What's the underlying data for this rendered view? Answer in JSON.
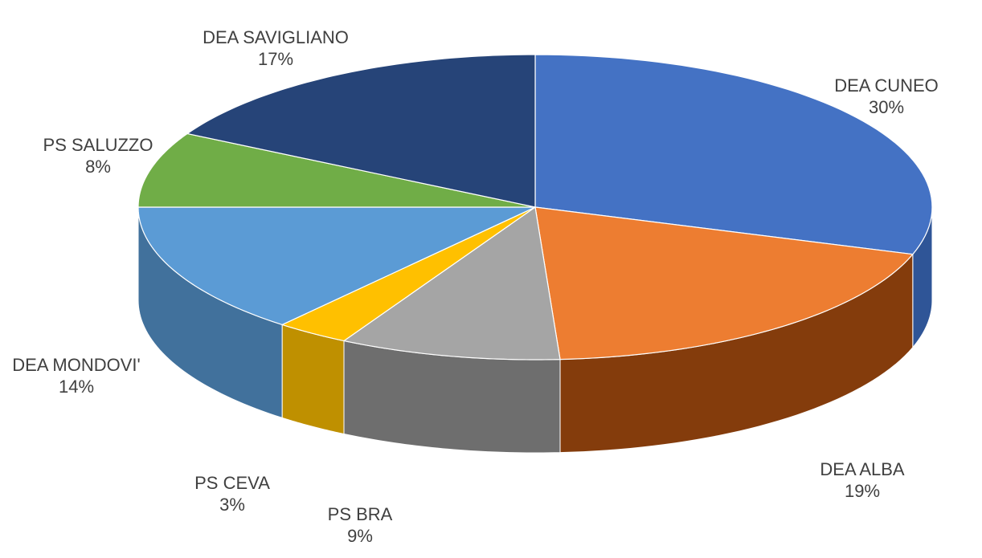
{
  "chart_data": {
    "type": "pie",
    "title": "",
    "style": "3d-perspective",
    "start_angle_deg": 90,
    "direction": "clockwise",
    "slices": [
      {
        "label": "DEA CUNEO",
        "percent_label": "30%",
        "value": 30,
        "color": "#4472C4",
        "side_color": "#2F5597"
      },
      {
        "label": "DEA ALBA",
        "percent_label": "19%",
        "value": 19,
        "color": "#ED7D31",
        "side_color": "#843C0C"
      },
      {
        "label": "PS BRA",
        "percent_label": "9%",
        "value": 9,
        "color": "#A5A5A5",
        "side_color": "#6E6E6E"
      },
      {
        "label": "PS CEVA",
        "percent_label": "3%",
        "value": 3,
        "color": "#FFC000",
        "side_color": "#BF9000"
      },
      {
        "label": "DEA MONDOVI'",
        "percent_label": "14%",
        "value": 14,
        "color": "#5B9BD5",
        "side_color": "#41719C"
      },
      {
        "label": "PS SALUZZO",
        "percent_label": "8%",
        "value": 8,
        "color": "#70AD47",
        "side_color": "#507E32"
      },
      {
        "label": "DEA SAVIGLIANO",
        "percent_label": "17%",
        "value": 17,
        "color": "#264478",
        "side_color": "#1A2F54"
      }
    ]
  }
}
